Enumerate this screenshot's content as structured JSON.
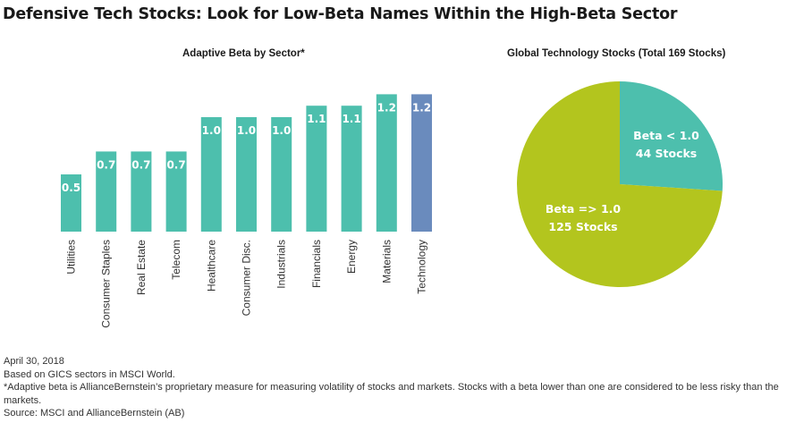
{
  "title": "Defensive Tech Stocks: Look for Low-Beta Names Within the High-Beta Sector",
  "colors": {
    "bar": "#4dbfad",
    "highlight_bar": "#6a8bbd",
    "pie_low_beta": "#4dbfad",
    "pie_high_beta": "#b3c51e"
  },
  "chart_data": [
    {
      "type": "bar",
      "title": "Adaptive Beta by Sector*",
      "categories": [
        "Utilities",
        "Consumer Staples",
        "Real Estate",
        "Telecom",
        "Healthcare",
        "Consumer Disc.",
        "Industrials",
        "Financials",
        "Energy",
        "Materials",
        "Technology"
      ],
      "values": [
        0.5,
        0.7,
        0.7,
        0.7,
        1.0,
        1.0,
        1.0,
        1.1,
        1.1,
        1.2,
        1.2
      ],
      "value_labels": [
        "0.5",
        "0.7",
        "0.7",
        "0.7",
        "1.0",
        "1.0",
        "1.0",
        "1.1",
        "1.1",
        "1.2",
        "1.2"
      ],
      "highlight": "Technology",
      "xlabel": "",
      "ylabel": "",
      "ylim": [
        0,
        1.2
      ],
      "grid": false,
      "legend": "none"
    },
    {
      "type": "pie",
      "title": "Global Technology Stocks (Total 169 Stocks)",
      "slices": [
        {
          "label": "Beta < 1.0",
          "count_label": "44 Stocks",
          "value": 44
        },
        {
          "label": "Beta => 1.0",
          "count_label": "125 Stocks",
          "value": 125
        }
      ],
      "total": 169
    }
  ],
  "footnotes": [
    "April 30, 2018",
    "Based on GICS sectors in MSCI World.",
    "*Adaptive beta is AllianceBernstein’s proprietary measure for measuring volatility of stocks and markets. Stocks with a beta lower than one are considered to be less risky than the markets.",
    "Source: MSCI and AllianceBernstein (AB)"
  ]
}
